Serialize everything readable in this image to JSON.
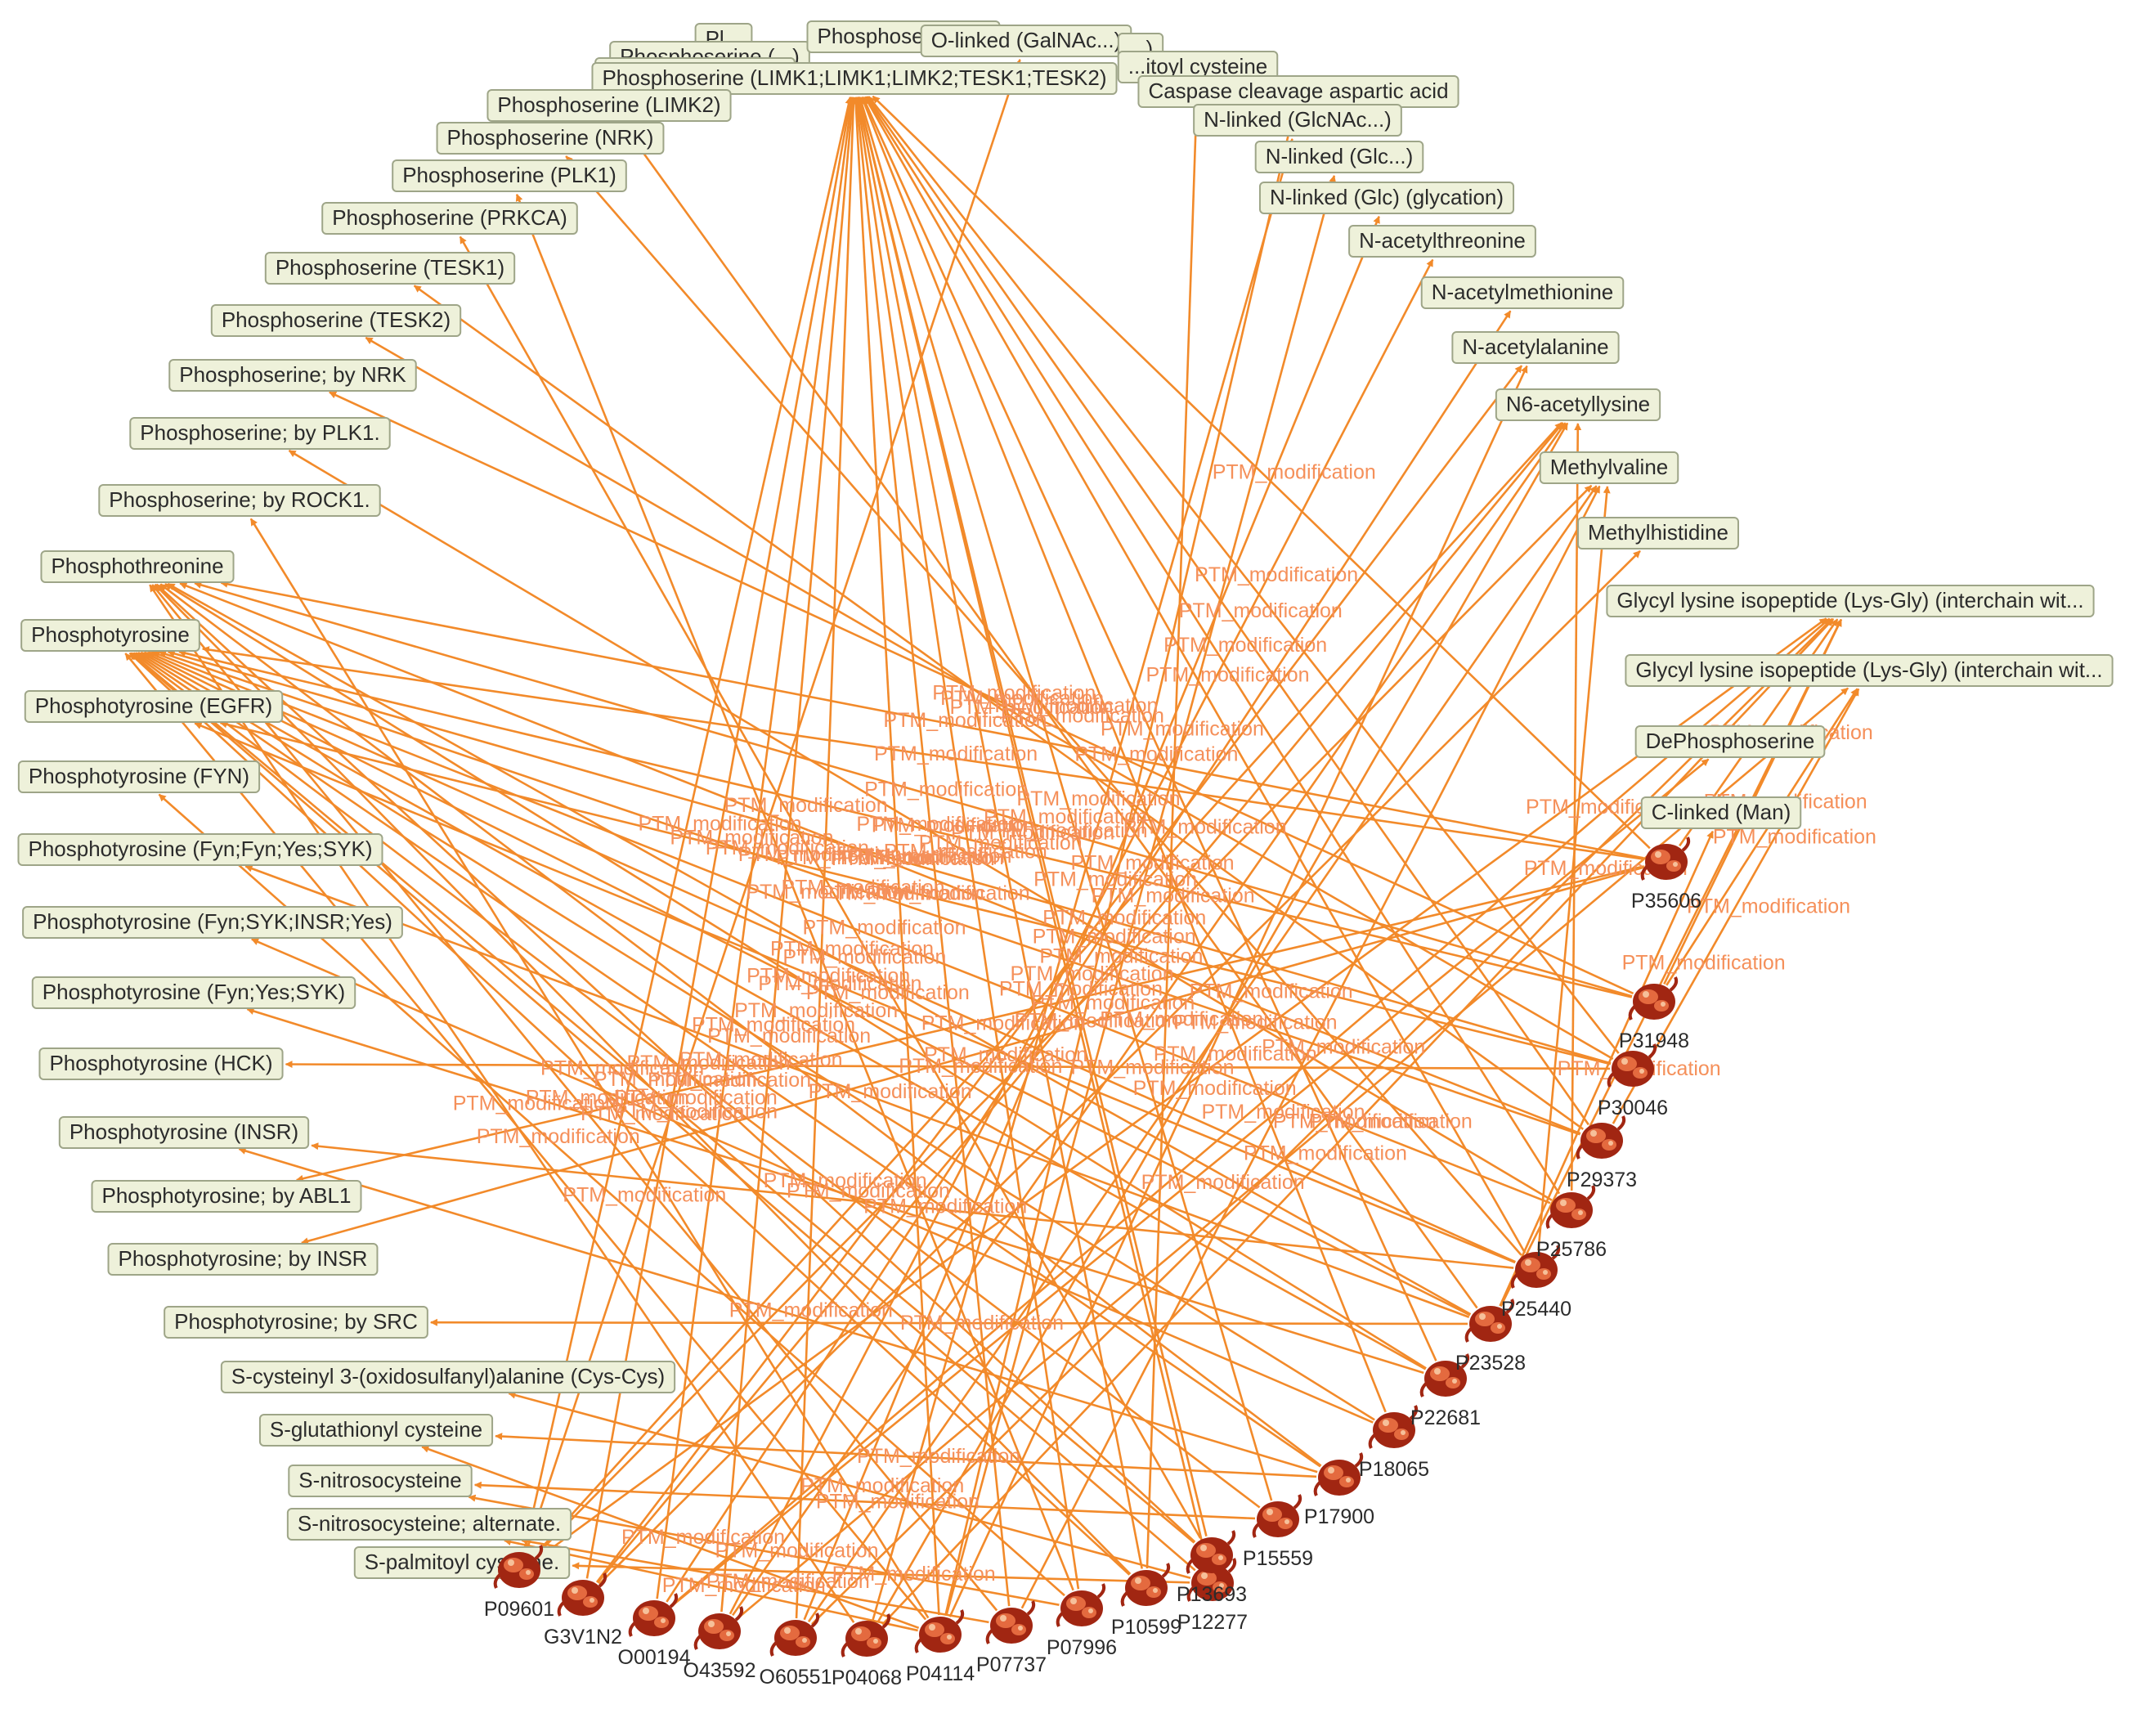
{
  "edge_label": "PTM_modification",
  "colors": {
    "edge": "#f28a2a",
    "edge_label": "#f5905a",
    "node_fill": "#eef1da",
    "node_border": "#9ea588",
    "protein": "#a12612"
  },
  "icons": {
    "protein_node": "protein-structure-icon"
  },
  "ptm_nodes": [
    {
      "id": "t0",
      "label": "Pl..."
    },
    {
      "id": "t1",
      "label": "Phosphoserine (...)"
    },
    {
      "id": "t2",
      "label": "Phosphoserine (...)"
    },
    {
      "id": "t3",
      "label": "Phosphoserine (LIMK1;LIMK1;LIMK2;TESK1;TESK2)"
    },
    {
      "id": "t4",
      "label": "Phosphoserine (LIMK2)"
    },
    {
      "id": "t5",
      "label": "Phosphoserine (NRK)"
    },
    {
      "id": "t6",
      "label": "Phosphoserine (PLK1)"
    },
    {
      "id": "t7",
      "label": "Phosphoserine (PRKCA)"
    },
    {
      "id": "t8",
      "label": "Phosphoserine (TESK1)"
    },
    {
      "id": "t9",
      "label": "Phosphoserine (TESK2)"
    },
    {
      "id": "t10",
      "label": "Phosphoserine; by NRK"
    },
    {
      "id": "t11",
      "label": "Phosphoserine; by PLK1."
    },
    {
      "id": "t12",
      "label": "Phosphoserine; by ROCK1."
    },
    {
      "id": "t13",
      "label": "Phosphothreonine"
    },
    {
      "id": "t14",
      "label": "Phosphotyrosine"
    },
    {
      "id": "t15",
      "label": "Phosphotyrosine (EGFR)"
    },
    {
      "id": "t16",
      "label": "Phosphotyrosine (FYN)"
    },
    {
      "id": "t17",
      "label": "Phosphotyrosine (Fyn;Fyn;Yes;SYK)"
    },
    {
      "id": "t18",
      "label": "Phosphotyrosine (Fyn;SYK;INSR;Yes)"
    },
    {
      "id": "t19",
      "label": "Phosphotyrosine (Fyn;Yes;SYK)"
    },
    {
      "id": "t20",
      "label": "Phosphotyrosine (HCK)"
    },
    {
      "id": "t21",
      "label": "Phosphotyrosine (INSR)"
    },
    {
      "id": "t22",
      "label": "Phosphotyrosine; by ABL1"
    },
    {
      "id": "t23",
      "label": "Phosphotyrosine; by INSR"
    },
    {
      "id": "t24",
      "label": "Phosphotyrosine; by SRC"
    },
    {
      "id": "t25",
      "label": "S-cysteinyl 3-(oxidosulfanyl)alanine (Cys-Cys)"
    },
    {
      "id": "t26",
      "label": "S-glutathionyl cysteine"
    },
    {
      "id": "t27",
      "label": "S-nitrosocysteine"
    },
    {
      "id": "t28",
      "label": "S-nitrosocysteine; alternate."
    },
    {
      "id": "t29",
      "label": "S-palmitoyl cysteine."
    },
    {
      "id": "t30",
      "label": "Phosphoserine (..."
    },
    {
      "id": "t31",
      "label": "O-linked (GalNAc...)"
    },
    {
      "id": "t32",
      "label": "...)"
    },
    {
      "id": "t33",
      "label": "...itoyl cysteine"
    },
    {
      "id": "t34",
      "label": "Caspase cleavage aspartic acid"
    },
    {
      "id": "t35",
      "label": "N-linked (GlcNAc...)"
    },
    {
      "id": "t36",
      "label": "N-linked (Glc...)"
    },
    {
      "id": "t37",
      "label": "N-linked (Glc) (glycation)"
    },
    {
      "id": "t38",
      "label": "N-acetylthreonine"
    },
    {
      "id": "t39",
      "label": "N-acetylmethionine"
    },
    {
      "id": "t40",
      "label": "N-acetylalanine"
    },
    {
      "id": "t41",
      "label": "N6-acetyllysine"
    },
    {
      "id": "t42",
      "label": "Methylvaline"
    },
    {
      "id": "t43",
      "label": "Methylhistidine"
    },
    {
      "id": "t44",
      "label": "Glycyl lysine isopeptide (Lys-Gly) (interchain wit..."
    },
    {
      "id": "t45",
      "label": "Glycyl lysine isopeptide (Lys-Gly) (interchain wit..."
    },
    {
      "id": "t46",
      "label": "DePhosphoserine"
    },
    {
      "id": "t47",
      "label": "C-linked (Man)"
    }
  ],
  "protein_nodes": [
    {
      "id": "p0",
      "label": "P09601"
    },
    {
      "id": "p1",
      "label": "G3V1N2"
    },
    {
      "id": "p2",
      "label": "O00194"
    },
    {
      "id": "p3",
      "label": "O43592"
    },
    {
      "id": "p4",
      "label": "O60551"
    },
    {
      "id": "p5",
      "label": "P04068"
    },
    {
      "id": "p6",
      "label": "P04114"
    },
    {
      "id": "p7",
      "label": "P07737"
    },
    {
      "id": "p8",
      "label": "P07996"
    },
    {
      "id": "p9",
      "label": "P10599"
    },
    {
      "id": "p10",
      "label": "P12277"
    },
    {
      "id": "p11",
      "label": "P13693"
    },
    {
      "id": "p12",
      "label": "P15559"
    },
    {
      "id": "p13",
      "label": "P17900"
    },
    {
      "id": "p14",
      "label": "P18065"
    },
    {
      "id": "p15",
      "label": "P22681"
    },
    {
      "id": "p16",
      "label": "P23528"
    },
    {
      "id": "p17",
      "label": "P25440"
    },
    {
      "id": "p18",
      "label": "P25786"
    },
    {
      "id": "p19",
      "label": "P29373"
    },
    {
      "id": "p20",
      "label": "P30046"
    },
    {
      "id": "p21",
      "label": "P31948"
    },
    {
      "id": "p22",
      "label": "P35606"
    }
  ],
  "edges": [
    [
      "p16",
      "t13"
    ],
    [
      "p16",
      "t14"
    ],
    [
      "p16",
      "t4"
    ],
    [
      "p16",
      "t44"
    ],
    [
      "p16",
      "t47"
    ],
    [
      "p16",
      "t17"
    ],
    [
      "p16",
      "t24"
    ],
    [
      "p17",
      "t14"
    ],
    [
      "p17",
      "t15"
    ],
    [
      "p17",
      "t5"
    ],
    [
      "p17",
      "t42"
    ],
    [
      "p17",
      "t3"
    ],
    [
      "p17",
      "t21"
    ],
    [
      "p0",
      "t3"
    ],
    [
      "p0",
      "t41"
    ],
    [
      "p0",
      "t42"
    ],
    [
      "p0",
      "t44"
    ],
    [
      "p0",
      "t31"
    ],
    [
      "p1",
      "t3"
    ],
    [
      "p1",
      "t40"
    ],
    [
      "p1",
      "t43"
    ],
    [
      "p1",
      "t41"
    ],
    [
      "p2",
      "t3"
    ],
    [
      "p2",
      "t44"
    ],
    [
      "p2",
      "t46"
    ],
    [
      "p2",
      "t39"
    ],
    [
      "p3",
      "t41"
    ],
    [
      "p3",
      "t45"
    ],
    [
      "p3",
      "t3"
    ],
    [
      "p3",
      "t38"
    ],
    [
      "p4",
      "t3"
    ],
    [
      "p4",
      "t42"
    ],
    [
      "p4",
      "t37"
    ],
    [
      "p4",
      "t44"
    ],
    [
      "p5",
      "t41"
    ],
    [
      "p5",
      "t44"
    ],
    [
      "p5",
      "t35"
    ],
    [
      "p5",
      "t13"
    ],
    [
      "p6",
      "t3"
    ],
    [
      "p6",
      "t14"
    ],
    [
      "p6",
      "t26"
    ],
    [
      "p6",
      "t36"
    ],
    [
      "p6",
      "t28"
    ],
    [
      "p6",
      "t34"
    ],
    [
      "p6",
      "t40"
    ],
    [
      "p6",
      "t12"
    ],
    [
      "p7",
      "t3"
    ],
    [
      "p7",
      "t13"
    ],
    [
      "p7",
      "t42"
    ],
    [
      "p7",
      "t28"
    ],
    [
      "p8",
      "t6"
    ],
    [
      "p8",
      "t3"
    ],
    [
      "p8",
      "t16"
    ],
    [
      "p8",
      "t27"
    ],
    [
      "p9",
      "t3"
    ],
    [
      "p9",
      "t14"
    ],
    [
      "p9",
      "t13"
    ],
    [
      "p9",
      "t33"
    ],
    [
      "p10",
      "t3"
    ],
    [
      "p10",
      "t14"
    ],
    [
      "p10",
      "t25"
    ],
    [
      "p10",
      "t29"
    ],
    [
      "p11",
      "t3"
    ],
    [
      "p11",
      "t14"
    ],
    [
      "p11",
      "t13"
    ],
    [
      "p11",
      "t7"
    ],
    [
      "p12",
      "t3"
    ],
    [
      "p12",
      "t14"
    ],
    [
      "p12",
      "t27"
    ],
    [
      "p13",
      "t14"
    ],
    [
      "p13",
      "t13"
    ],
    [
      "p13",
      "t21"
    ],
    [
      "p13",
      "t26"
    ],
    [
      "p14",
      "t3"
    ],
    [
      "p14",
      "t18"
    ],
    [
      "p14",
      "t14"
    ],
    [
      "p15",
      "t3"
    ],
    [
      "p15",
      "t14"
    ],
    [
      "p15",
      "t13"
    ],
    [
      "p15",
      "t19"
    ],
    [
      "p18",
      "t3"
    ],
    [
      "p18",
      "t14"
    ],
    [
      "p18",
      "t11"
    ],
    [
      "p18",
      "t41"
    ],
    [
      "p19",
      "t14"
    ],
    [
      "p19",
      "t13"
    ],
    [
      "p19",
      "t3"
    ],
    [
      "p19",
      "t8"
    ],
    [
      "p19",
      "t45"
    ],
    [
      "p20",
      "t14"
    ],
    [
      "p20",
      "t15"
    ],
    [
      "p20",
      "t3"
    ],
    [
      "p20",
      "t9"
    ],
    [
      "p20",
      "t20"
    ],
    [
      "p21",
      "t14"
    ],
    [
      "p21",
      "t13"
    ],
    [
      "p21",
      "t10"
    ],
    [
      "p21",
      "t45"
    ],
    [
      "p21",
      "t44"
    ],
    [
      "p22",
      "t14"
    ],
    [
      "p22",
      "t13"
    ],
    [
      "p22",
      "t3"
    ],
    [
      "p22",
      "t22"
    ],
    [
      "p22",
      "t23"
    ],
    [
      "p22",
      "t44"
    ]
  ]
}
